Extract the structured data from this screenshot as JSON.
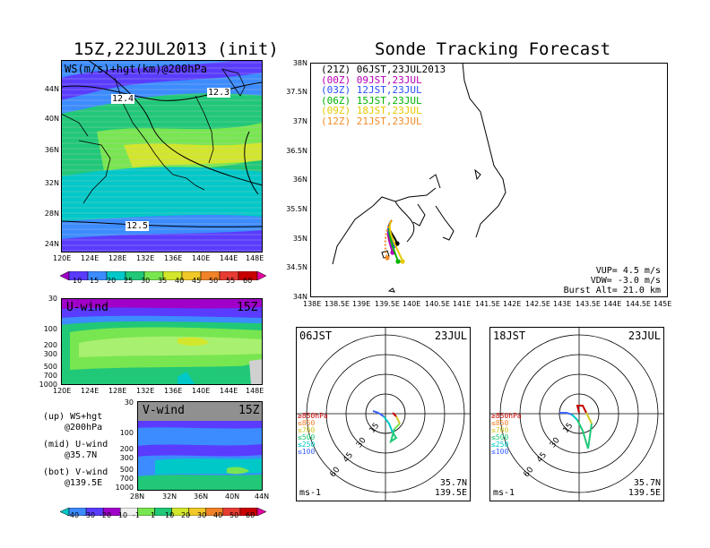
{
  "left_title": "15Z,22JUL2013 (init)",
  "right_title": "Sonde Tracking Forecast",
  "map_panel": {
    "label": "WS(m/s)+hgt(km)@200hPa",
    "x_ticks": [
      "120E",
      "124E",
      "128E",
      "132E",
      "136E",
      "140E",
      "144E",
      "148E"
    ],
    "y_ticks": [
      "44N",
      "40N",
      "36N",
      "32N",
      "28N",
      "24N"
    ],
    "contour_labels": [
      "12.4",
      "12.3",
      "12.5"
    ]
  },
  "colorbar_top": {
    "labels": [
      "10",
      "15",
      "20",
      "25",
      "30",
      "35",
      "40",
      "45",
      "50",
      "55",
      "60"
    ],
    "colors": [
      "#a000c8",
      "#5a3cff",
      "#3c8cff",
      "#00c8c8",
      "#20c878",
      "#78e650",
      "#d2e62c",
      "#f0c828",
      "#f08228",
      "#e63c32",
      "#c80000",
      "#e600a0"
    ]
  },
  "u_panel": {
    "label": "U-wind",
    "time": "15Z",
    "y_ticks": [
      "30",
      "100",
      "200",
      "300",
      "500",
      "700",
      "1000"
    ],
    "x_ticks": [
      "120E",
      "124E",
      "128E",
      "132E",
      "136E",
      "140E",
      "144E",
      "148E"
    ]
  },
  "v_panel": {
    "label": "V-wind",
    "time": "15Z",
    "y_ticks": [
      "30",
      "100",
      "200",
      "300",
      "500",
      "700",
      "1000"
    ],
    "x_ticks": [
      "28N",
      "32N",
      "36N",
      "40N",
      "44N"
    ]
  },
  "legend_notes": [
    {
      "l1": "(up) WS+hgt",
      "l2": "@200hPa"
    },
    {
      "l1": "(mid) U-wind",
      "l2": "@35.7N"
    },
    {
      "l1": "(bot) V-wind",
      "l2": "@139.5E"
    }
  ],
  "colorbar_bottom": {
    "labels": [
      "-40",
      "-30",
      "-20",
      "-10",
      "-1",
      "1",
      "10",
      "20",
      "30",
      "40",
      "50",
      "60"
    ],
    "colors": [
      "#00c8c8",
      "#3c8cff",
      "#5a3cff",
      "#a000c8",
      "#f0f0f0",
      "#78e650",
      "#20c878",
      "#d2e62c",
      "#f0c828",
      "#f08228",
      "#e63c32",
      "#c80000",
      "#e600a0"
    ]
  },
  "track_panel": {
    "x_ticks": [
      "138E",
      "138.5E",
      "139E",
      "139.5E",
      "140E",
      "140.5E",
      "141E",
      "141.5E",
      "142E",
      "142.5E",
      "143E",
      "143.5E",
      "144E",
      "144.5E",
      "145E"
    ],
    "y_ticks": [
      "38N",
      "37.5N",
      "37N",
      "36.5N",
      "36N",
      "35.5N",
      "35N",
      "34.5N",
      "34N"
    ],
    "launches": [
      {
        "utc": "(21Z)",
        "jst": "06JST,23JUL2013",
        "color": "#000000"
      },
      {
        "utc": "(00Z)",
        "jst": "09JST,23JUL",
        "color": "#b400b4"
      },
      {
        "utc": "(03Z)",
        "jst": "12JST,23JUL",
        "color": "#2850ff"
      },
      {
        "utc": "(06Z)",
        "jst": "15JST,23JUL",
        "color": "#00b400"
      },
      {
        "utc": "(09Z)",
        "jst": "18JST,23JUL",
        "color": "#e6c800"
      },
      {
        "utc": "(12Z)",
        "jst": "21JST,23JUL",
        "color": "#f08c28"
      }
    ],
    "params": [
      "VUP= 4.5 m/s",
      "VDW= -3.0 m/s",
      "Burst Alt= 21.0 km"
    ]
  },
  "hodo_left": {
    "time": "06JST",
    "date": "23JUL",
    "lat": "35.7N",
    "lon": "139.5E",
    "units": "ms-1",
    "rings": [
      "15",
      "30",
      "45",
      "60"
    ]
  },
  "hodo_right": {
    "time": "18JST",
    "date": "23JUL",
    "lat": "35.7N",
    "lon": "139.5E",
    "units": "ms-1",
    "rings": [
      "15",
      "30",
      "45",
      "60"
    ]
  },
  "hodo_levels": [
    {
      "label": "≥850hPa",
      "color": "#c80000"
    },
    {
      "label": "≤850",
      "color": "#f08228"
    },
    {
      "label": "≤700",
      "color": "#d2c828"
    },
    {
      "label": "≤500",
      "color": "#20c878"
    },
    {
      "label": "≤250",
      "color": "#00c8c8"
    },
    {
      "label": "≤100",
      "color": "#3c64ff"
    }
  ]
}
